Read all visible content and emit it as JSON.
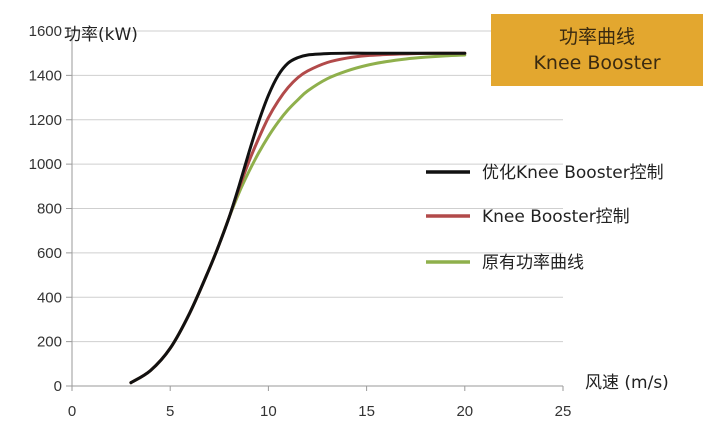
{
  "chart_data": {
    "type": "line",
    "title_line1": "功率曲线",
    "title_line2": "Knee Booster",
    "ylabel": "功率(kW)",
    "xlabel": "风速 (m/s)",
    "xlim": [
      0,
      25
    ],
    "ylim": [
      0,
      1600
    ],
    "xticks": [
      0,
      5,
      10,
      15,
      20,
      25
    ],
    "yticks": [
      0,
      200,
      400,
      600,
      800,
      1000,
      1200,
      1400,
      1600
    ],
    "grid": "horizontal",
    "legend_position": "right",
    "colors": {
      "title_box": "#e3a72f",
      "grid": "#cfcfcf",
      "axis": "#9a9a9a"
    },
    "series": [
      {
        "name": "优化Knee Booster控制",
        "color": "#111111",
        "x": [
          3,
          4,
          5,
          6,
          7,
          7.5,
          8,
          8.5,
          9,
          9.5,
          10,
          10.5,
          11,
          11.5,
          12,
          13,
          14,
          15,
          20
        ],
        "y": [
          15,
          70,
          170,
          330,
          530,
          640,
          760,
          900,
          1050,
          1190,
          1310,
          1400,
          1455,
          1480,
          1492,
          1498,
          1500,
          1500,
          1500
        ]
      },
      {
        "name": "Knee Booster控制",
        "color": "#b24a4a",
        "x": [
          3,
          4,
          5,
          6,
          7,
          7.5,
          8,
          8.5,
          9,
          9.5,
          10,
          10.5,
          11,
          11.5,
          12,
          13,
          14,
          15,
          16,
          17,
          18,
          20
        ],
        "y": [
          15,
          70,
          170,
          330,
          530,
          640,
          760,
          890,
          1010,
          1115,
          1210,
          1285,
          1345,
          1390,
          1420,
          1458,
          1478,
          1489,
          1494,
          1497,
          1499,
          1500
        ]
      },
      {
        "name": "原有功率曲线",
        "color": "#8fb04c",
        "x": [
          3,
          4,
          5,
          6,
          7,
          7.5,
          8,
          8.5,
          9,
          9.5,
          10,
          10.5,
          11,
          11.5,
          12,
          13,
          14,
          15,
          16,
          17,
          18,
          19,
          20
        ],
        "y": [
          15,
          70,
          170,
          330,
          530,
          640,
          760,
          870,
          965,
          1050,
          1125,
          1190,
          1245,
          1290,
          1330,
          1385,
          1420,
          1445,
          1462,
          1474,
          1482,
          1488,
          1492
        ]
      }
    ]
  }
}
